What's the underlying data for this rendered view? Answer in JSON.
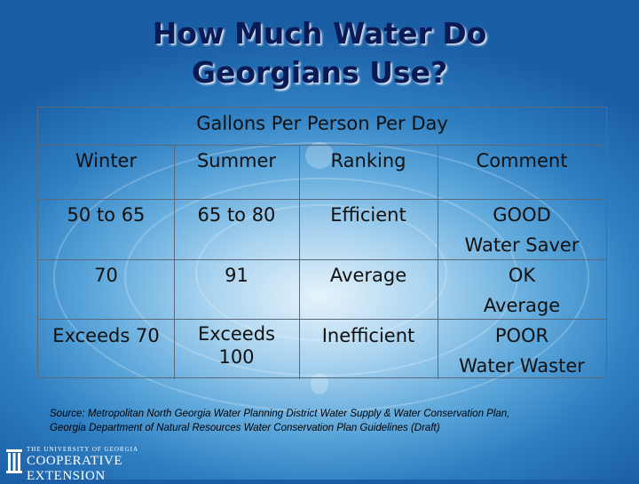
{
  "slide": {
    "title_line1": "How Much Water Do",
    "title_line2": "Georgians Use?"
  },
  "table": {
    "caption": "Gallons Per Person Per Day",
    "headers": [
      "Winter",
      "Summer",
      "Ranking",
      "Comment"
    ],
    "rows": [
      {
        "winter": "50 to 65",
        "summer": "65 to 80",
        "ranking": "Efficient",
        "comment_line1": "GOOD",
        "comment_line2": "Water Saver"
      },
      {
        "winter": "70",
        "summer": "91",
        "ranking": "Average",
        "comment_line1": "OK",
        "comment_line2": "Average"
      },
      {
        "winter": "Exceeds 70",
        "summer_line1": "Exceeds",
        "summer_line2": "100",
        "ranking": "Inefficient",
        "comment_line1": "POOR",
        "comment_line2": "Water Waster"
      }
    ]
  },
  "source": {
    "line1": "Source: Metropolitan North Georgia Water Planning District Water Supply & Water Conservation Plan,",
    "line2": "Georgia Department of Natural Resources Water Conservation Plan Guidelines (Draft)"
  },
  "logo": {
    "top_line": "THE UNIVERSITY OF GEORGIA",
    "main": "COOPERATIVE EXTENSION"
  },
  "colors": {
    "title": "#0a1a55",
    "background_light": "#e6f3fb",
    "background_dark": "#1a5ea6",
    "grid": "#5a6a7a"
  }
}
